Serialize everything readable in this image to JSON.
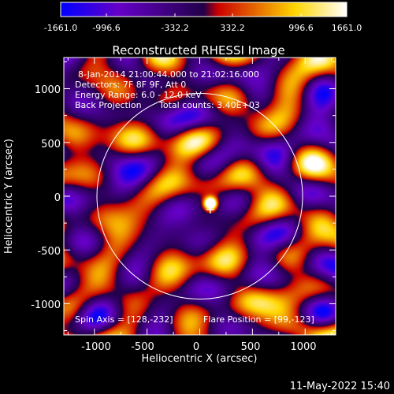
{
  "colorbar": {
    "ticks": [
      "-1661.0",
      "-996.6",
      "-332.2",
      "332.2",
      "996.6",
      "1661.0"
    ],
    "range": [
      -1661.0,
      1661.0
    ],
    "colormap": [
      "#0000ff",
      "#6600c8",
      "#22004a",
      "#cc0000",
      "#ffd700",
      "#ffffff"
    ]
  },
  "plot": {
    "title": "Reconstructed RHESSI Image",
    "xlabel": "Heliocentric X (arcsec)",
    "ylabel": "Heliocentric Y (arcsec)",
    "x_ticks": [
      "-1000",
      "-500",
      "0",
      "500",
      "1000"
    ],
    "y_ticks": [
      "1000",
      "500",
      "0",
      "-500",
      "-1000"
    ],
    "xlim": [
      -1290,
      1290
    ],
    "ylim": [
      -1290,
      1290
    ],
    "limb_radius_arcsec": 976,
    "limb_color": "#ffffff"
  },
  "annotations": {
    "time_range": "8-Jan-2014 21:00:44.000 to 21:02:16.000",
    "detectors": "Detectors: 7F 8F 9F, Att 0",
    "energy": "Energy Range: 6.0 - 12.0 keV",
    "method": "Back Projection",
    "counts": "Total counts: 3.40E+03",
    "spin_axis": "Spin Axis = [128,-232]",
    "flare_position": "Flare Position = [99,-123]",
    "flare_xy": [
      99,
      -123
    ]
  },
  "footer": {
    "timestamp": "11-May-2022 15:40"
  }
}
